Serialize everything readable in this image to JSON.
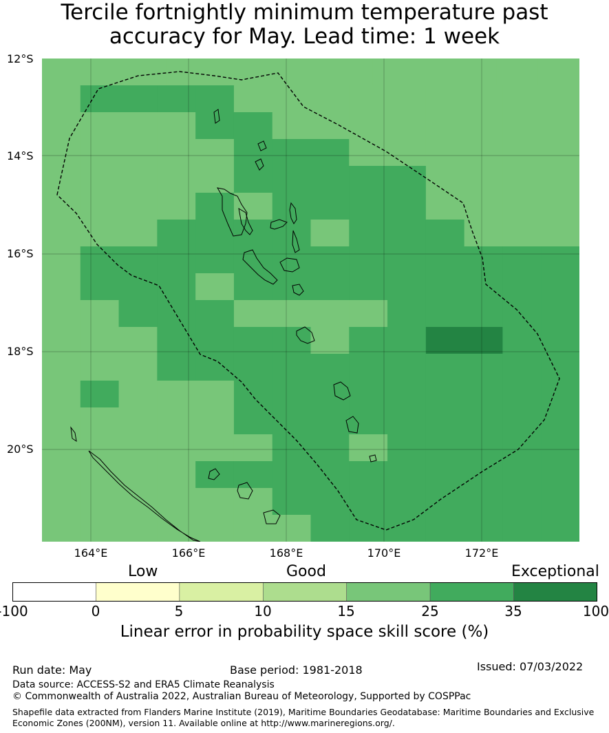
{
  "title": {
    "line1": "Tercile fortnightly minimum temperature past",
    "line2": "accuracy for May. Lead time: 1 week"
  },
  "map": {
    "lat_labels": [
      "12°S",
      "14°S",
      "16°S",
      "18°S",
      "20°S"
    ],
    "lon_labels": [
      "164°E",
      "166°E",
      "168°E",
      "170°E",
      "172°E"
    ],
    "lon_range": [
      163.0,
      174.0
    ],
    "lat_range": [
      -12.0,
      -21.9
    ],
    "cell_size_deg": 0.833,
    "category_colors": {
      "c25_35": "#78c679",
      "c35_100": "#41ab5d",
      "c100": "#238443"
    },
    "grid_rows": [
      "AAAAAAAAAAAAA",
      "ABBBBAAAAAAAAA",
      "AAAABBAAAAAAAA",
      "AAAAABBBAAAAAA",
      "AAAAABBBBBAAAA",
      "AAAABABBBBAAAA",
      "AAABBBBABBBAAA",
      "ABBBBBBBBBBBBB",
      "ABBBABBBBBBBBB",
      "AABBBAAAABBBBB",
      "AAABBBBABBCCBB",
      "AAABBBBBBBBBBB",
      "ABAAABBBBBBBBB",
      "AAAAABBBBBBBBB",
      "AAAAAABBABBBBB",
      "AAAABBBBBBBBBB",
      "AAAAAABBBBBBBB",
      "AAAAAAABBBBBBB"
    ]
  },
  "colorbar": {
    "categories": [
      "Low",
      "Good",
      "Exceptional"
    ],
    "ticks": [
      "-100",
      "0",
      "5",
      "10",
      "15",
      "25",
      "35",
      "100"
    ],
    "colors": [
      "#ffffff",
      "#ffffcc",
      "#d9f0a3",
      "#addd8e",
      "#78c679",
      "#41ab5d",
      "#238443"
    ],
    "label": "Linear error in probability space skill score (%)"
  },
  "footer": {
    "run_date": "Run date: May",
    "base_period": "Base period: 1981-2018",
    "issued": "Issued: 07/03/2022",
    "data_source": "Data source: ACCESS-S2 and ERA5 Climate Reanalysis",
    "copyright": "© Commonwealth of Australia 2022, Australian Bureau of Meteorology, Supported by COSPPac",
    "shapefile_line1": "Shapefile data extracted from Flanders Marine Institute (2019), Maritime Boundaries Geodatabase: Maritime Boundaries and Exclusive",
    "shapefile_line2": "Economic Zones (200NM), version 11. Available online at http://www.marineregions.org/."
  }
}
